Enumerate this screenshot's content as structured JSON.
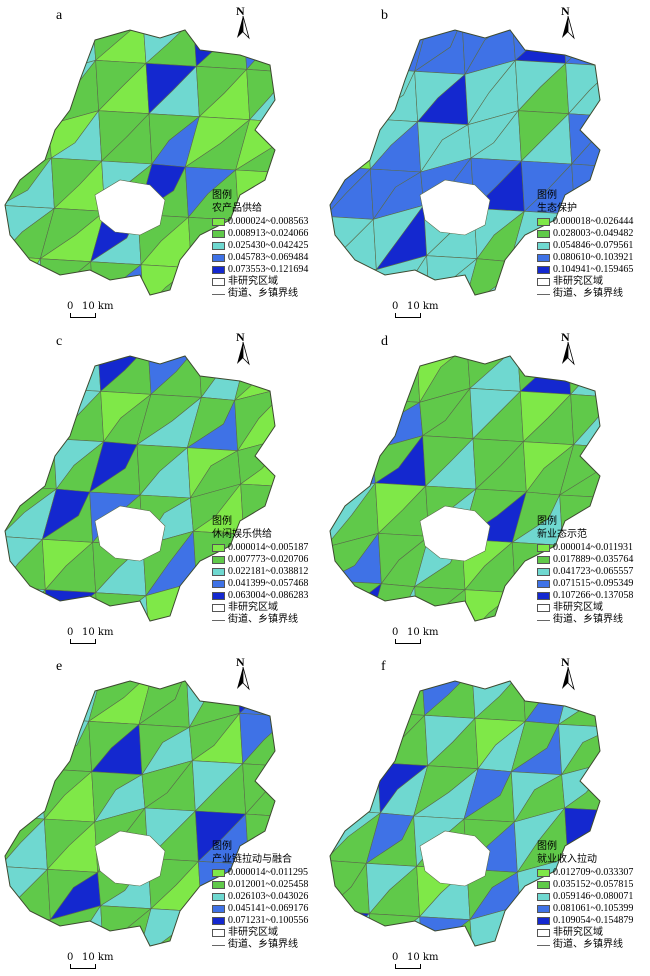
{
  "colors": {
    "c1": "#7fe848",
    "c2": "#60c94a",
    "c3": "#6fd8d0",
    "c4": "#3f72e6",
    "c5": "#1428cf",
    "non_study": "#ffffff",
    "boundary": "#5a6b4a"
  },
  "icons": {
    "north_arrow": "north-arrow-icon"
  },
  "common": {
    "legend_title": "图例",
    "non_study": "非研究区域",
    "boundary": "街道、乡镇界线",
    "north": "N",
    "scale_zero": "0",
    "scale_dist": "10 km"
  },
  "panels": [
    {
      "letter": "a",
      "subtitle": "农产品供给",
      "classes": [
        "0.000024~0.008563",
        "0.008913~0.024066",
        "0.025430~0.042425",
        "0.045783~0.069484",
        "0.073553~0.121694"
      ]
    },
    {
      "letter": "b",
      "subtitle": "生态保护",
      "classes": [
        "0.000018~0.026444",
        "0.028003~0.049482",
        "0.054846~0.079561",
        "0.080610~0.103921",
        "0.104941~0.159465"
      ]
    },
    {
      "letter": "c",
      "subtitle": "休闲娱乐供给",
      "classes": [
        "0.000014~0.005187",
        "0.007773~0.020706",
        "0.022181~0.038812",
        "0.041399~0.057468",
        "0.063004~0.086283"
      ]
    },
    {
      "letter": "d",
      "subtitle": "新业态示范",
      "classes": [
        "0.000014~0.011931",
        "0.017889~0.035764",
        "0.041723~0.065557",
        "0.071515~0.095349",
        "0.107266~0.137058"
      ]
    },
    {
      "letter": "e",
      "subtitle": "产业链拉动与融合",
      "classes": [
        "0.000014~0.011295",
        "0.012001~0.025458",
        "0.026103~0.043026",
        "0.045141~0.069176",
        "0.071231~0.100556"
      ]
    },
    {
      "letter": "f",
      "subtitle": "就业收入拉动",
      "classes": [
        "0.012709~0.033307",
        "0.035152~0.057815",
        "0.059146~0.080071",
        "0.081061~0.105399",
        "0.109054~0.154879"
      ]
    }
  ]
}
